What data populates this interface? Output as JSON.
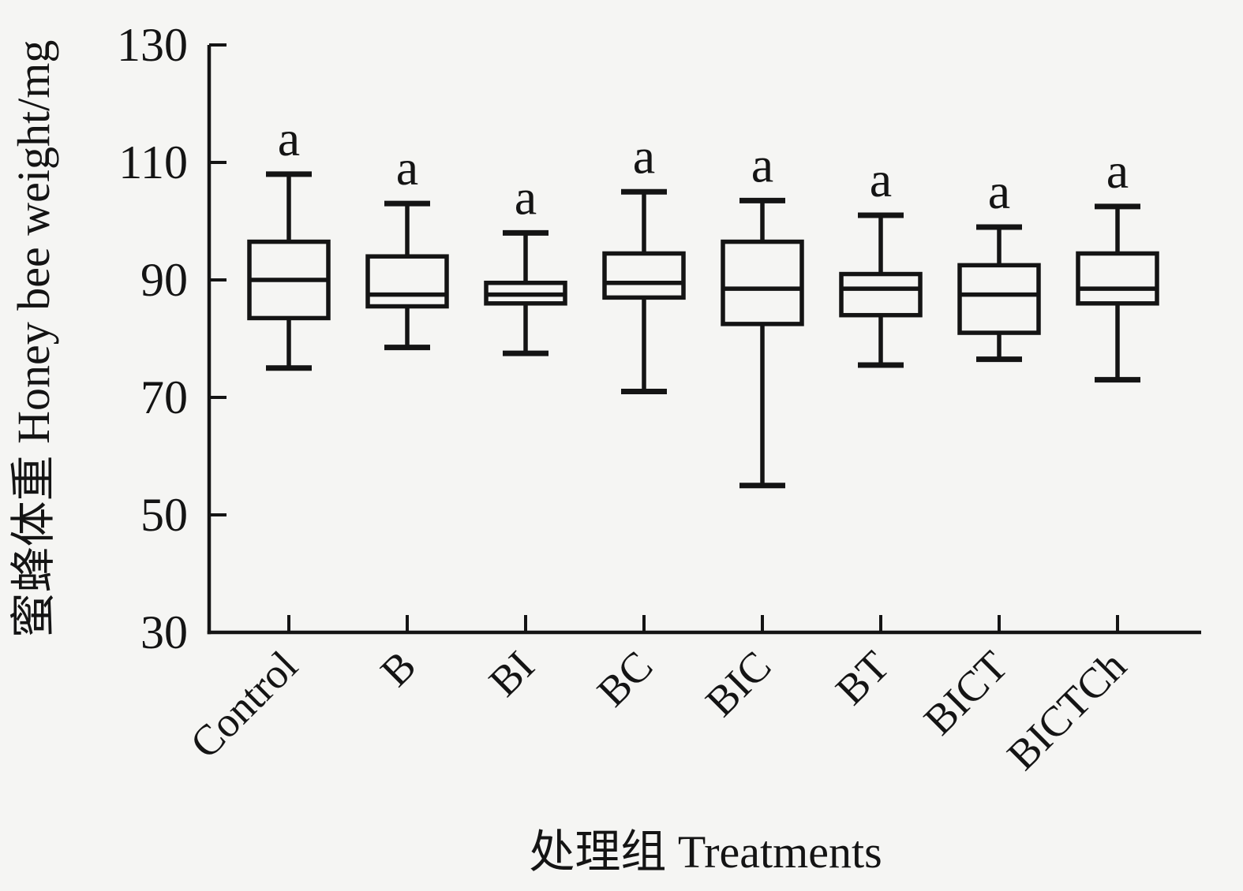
{
  "chart_data": {
    "type": "boxplot",
    "title": "",
    "xlabel": "处理组 Treatments",
    "ylabel": "蜜蜂体重  Honey bee weight/mg",
    "ylim": [
      30,
      130
    ],
    "yticks": [
      30,
      50,
      70,
      90,
      110,
      130
    ],
    "grid": "off",
    "legend": "none",
    "categories": [
      "Control",
      "B",
      "BI",
      "BC",
      "BIC",
      "BT",
      "BICT",
      "BICTCh"
    ],
    "series": [
      {
        "category": "Control",
        "whisker_low": 75,
        "q1": 83.5,
        "median": 90,
        "q3": 96.5,
        "whisker_high": 108,
        "sig_label": "a"
      },
      {
        "category": "B",
        "whisker_low": 78.5,
        "q1": 85.5,
        "median": 87.5,
        "q3": 94,
        "whisker_high": 103,
        "sig_label": "a"
      },
      {
        "category": "BI",
        "whisker_low": 77.5,
        "q1": 86,
        "median": 87.5,
        "q3": 89.5,
        "whisker_high": 98,
        "sig_label": "a"
      },
      {
        "category": "BC",
        "whisker_low": 71,
        "q1": 87,
        "median": 89.5,
        "q3": 94.5,
        "whisker_high": 105,
        "sig_label": "a"
      },
      {
        "category": "BIC",
        "whisker_low": 55,
        "q1": 82.5,
        "median": 88.5,
        "q3": 96.5,
        "whisker_high": 103.5,
        "sig_label": "a"
      },
      {
        "category": "BT",
        "whisker_low": 75.5,
        "q1": 84,
        "median": 88.5,
        "q3": 91,
        "whisker_high": 101,
        "sig_label": "a"
      },
      {
        "category": "BICT",
        "whisker_low": 76.5,
        "q1": 81,
        "median": 87.5,
        "q3": 92.5,
        "whisker_high": 99,
        "sig_label": "a"
      },
      {
        "category": "BICTCh",
        "whisker_low": 73,
        "q1": 86,
        "median": 88.5,
        "q3": 94.5,
        "whisker_high": 102.5,
        "sig_label": "a"
      }
    ],
    "colors": {
      "line": "#141414",
      "background": "#f5f5f3"
    }
  }
}
